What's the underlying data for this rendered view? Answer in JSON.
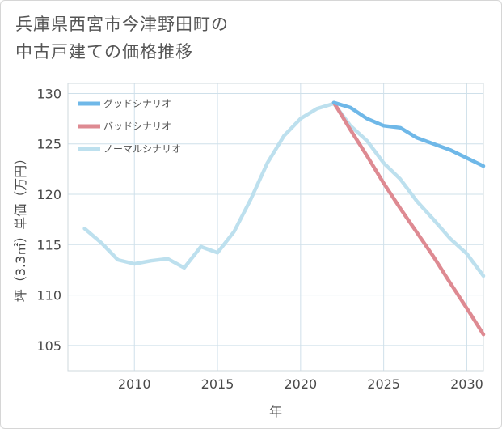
{
  "title_line1": "兵庫県西宮市今津野田町の",
  "title_line2": "中古戸建ての価格推移",
  "chart_data": {
    "type": "line",
    "title": "兵庫県西宮市今津野田町の中古戸建ての価格推移",
    "xlabel": "年",
    "ylabel": "坪（3.3㎡）単価（万円）",
    "xlim": [
      2006,
      2031
    ],
    "ylim": [
      102.5,
      131
    ],
    "xticks": [
      2010,
      2015,
      2020,
      2025,
      2030
    ],
    "yticks": [
      105,
      110,
      115,
      120,
      125,
      130
    ],
    "grid": true,
    "legend_position": "top-left",
    "series": [
      {
        "name": "グッドシナリオ",
        "color": "#6fb8e8",
        "x": [
          2022,
          2023,
          2024,
          2025,
          2026,
          2027,
          2028,
          2029,
          2030,
          2031
        ],
        "y": [
          129.1,
          128.6,
          127.5,
          126.8,
          126.6,
          125.6,
          125.0,
          124.4,
          123.6,
          122.8
        ]
      },
      {
        "name": "バッドシナリオ",
        "color": "#de8a92",
        "x": [
          2022,
          2023,
          2024,
          2025,
          2026,
          2027,
          2028,
          2029,
          2030,
          2031
        ],
        "y": [
          129.1,
          126.4,
          123.8,
          121.1,
          118.6,
          116.2,
          113.8,
          111.2,
          108.7,
          106.1
        ]
      },
      {
        "name": "ノーマルシナリオ",
        "color": "#bde0ee",
        "x": [
          2007,
          2008,
          2009,
          2010,
          2011,
          2012,
          2013,
          2014,
          2015,
          2016,
          2017,
          2018,
          2019,
          2020,
          2021,
          2022,
          2023,
          2024,
          2025,
          2026,
          2027,
          2028,
          2029,
          2030,
          2031
        ],
        "y": [
          116.6,
          115.2,
          113.5,
          113.1,
          113.4,
          113.6,
          112.7,
          114.8,
          114.2,
          116.3,
          119.5,
          123.1,
          125.8,
          127.5,
          128.5,
          129.0,
          126.8,
          125.3,
          123.1,
          121.5,
          119.3,
          117.5,
          115.6,
          114.1,
          111.9
        ]
      }
    ]
  }
}
